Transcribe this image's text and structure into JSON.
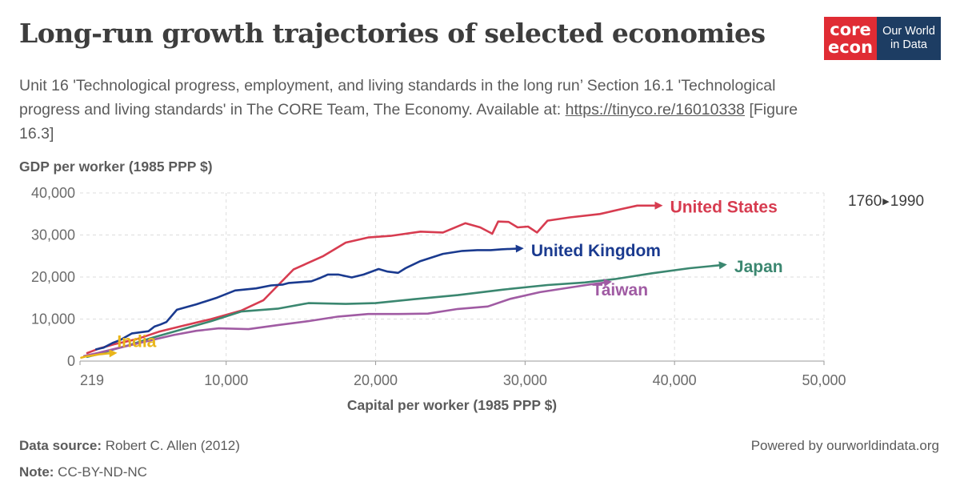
{
  "header": {
    "title": "Long-run growth trajectories of selected economies",
    "subtitle_part1": "Unit 16 'Technological progress, employment, and living standards in the long run’ Section 16.1 'Technological progress and living standards' in The CORE Team, The Economy. Available at: ",
    "subtitle_link": "https://tinyco.re/16010338",
    "subtitle_part2": " [Figure 16.3]"
  },
  "logos": {
    "core_line1": "core",
    "core_line2": "econ",
    "owid_line1": "Our World",
    "owid_line2": "in Data",
    "core_color": "#e02c34",
    "owid_color": "#1d3d63"
  },
  "timeline": {
    "start": "1760",
    "end": "1990"
  },
  "footer": {
    "source_label": "Data source:",
    "source_value": " Robert C. Allen (2012)",
    "note_label": "Note:",
    "note_value": " CC-BY-ND-NC",
    "powered": "Powered by ourworldindata.org"
  },
  "chart_data": {
    "type": "line",
    "xlabel": "Capital per worker (1985 PPP $)",
    "ylabel": "GDP per worker (1985 PPP $)",
    "xlim": [
      219,
      50000
    ],
    "ylim": [
      0,
      40000
    ],
    "x_ticks": [
      219,
      10000,
      20000,
      30000,
      40000,
      50000
    ],
    "x_tick_labels": [
      "219",
      "10,000",
      "20,000",
      "30,000",
      "40,000",
      "50,000"
    ],
    "y_ticks": [
      0,
      10000,
      20000,
      30000,
      40000
    ],
    "y_tick_labels": [
      "0",
      "10,000",
      "20,000",
      "30,000",
      "40,000"
    ],
    "grid": true,
    "series": [
      {
        "name": "United States",
        "color": "#d73c50",
        "points": [
          [
            700,
            1900
          ],
          [
            1500,
            3000
          ],
          [
            2500,
            4000
          ],
          [
            4000,
            5200
          ],
          [
            5500,
            7000
          ],
          [
            7000,
            8300
          ],
          [
            9000,
            10000
          ],
          [
            11000,
            12000
          ],
          [
            12500,
            14500
          ],
          [
            14500,
            21800
          ],
          [
            16500,
            25000
          ],
          [
            18000,
            28200
          ],
          [
            19500,
            29400
          ],
          [
            21000,
            29800
          ],
          [
            23000,
            30800
          ],
          [
            24500,
            30600
          ],
          [
            26000,
            32800
          ],
          [
            27000,
            31800
          ],
          [
            27800,
            30300
          ],
          [
            28200,
            33200
          ],
          [
            28900,
            33100
          ],
          [
            29500,
            31800
          ],
          [
            30200,
            32000
          ],
          [
            30800,
            30600
          ],
          [
            31500,
            33400
          ],
          [
            33000,
            34200
          ],
          [
            35000,
            35000
          ],
          [
            36500,
            36200
          ],
          [
            37500,
            37000
          ],
          [
            39000,
            37000
          ]
        ],
        "label_x": 39700,
        "label_y": 36900
      },
      {
        "name": "United Kingdom",
        "color": "#1a3a8f",
        "points": [
          [
            1300,
            2800
          ],
          [
            1800,
            3200
          ],
          [
            2400,
            4300
          ],
          [
            2900,
            5000
          ],
          [
            3700,
            6600
          ],
          [
            4800,
            7100
          ],
          [
            5200,
            8200
          ],
          [
            5600,
            8700
          ],
          [
            6000,
            9300
          ],
          [
            6700,
            12200
          ],
          [
            8000,
            13500
          ],
          [
            9400,
            15100
          ],
          [
            10600,
            16800
          ],
          [
            12000,
            17300
          ],
          [
            13000,
            18000
          ],
          [
            13800,
            18200
          ],
          [
            14200,
            18600
          ],
          [
            15000,
            18800
          ],
          [
            15700,
            19000
          ],
          [
            16300,
            19800
          ],
          [
            16800,
            20600
          ],
          [
            17500,
            20600
          ],
          [
            18400,
            19900
          ],
          [
            19200,
            20600
          ],
          [
            20200,
            21900
          ],
          [
            20800,
            21300
          ],
          [
            21500,
            21000
          ],
          [
            22000,
            22100
          ],
          [
            23000,
            23800
          ],
          [
            24500,
            25500
          ],
          [
            25800,
            26200
          ],
          [
            26800,
            26400
          ],
          [
            27700,
            26400
          ],
          [
            28400,
            26600
          ],
          [
            29700,
            26800
          ]
        ],
        "label_x": 30400,
        "label_y": 26500
      },
      {
        "name": "Japan",
        "color": "#3b8770",
        "points": [
          [
            700,
            1000
          ],
          [
            1500,
            1700
          ],
          [
            2500,
            2800
          ],
          [
            3500,
            3800
          ],
          [
            5000,
            5500
          ],
          [
            6500,
            7000
          ],
          [
            7500,
            8000
          ],
          [
            9000,
            9500
          ],
          [
            11000,
            11800
          ],
          [
            13500,
            12500
          ],
          [
            15500,
            13800
          ],
          [
            18000,
            13600
          ],
          [
            20000,
            13800
          ],
          [
            22500,
            14700
          ],
          [
            25500,
            15700
          ],
          [
            28500,
            17000
          ],
          [
            31500,
            18100
          ],
          [
            34000,
            18700
          ],
          [
            36000,
            19500
          ],
          [
            38500,
            20900
          ],
          [
            41000,
            22100
          ],
          [
            43300,
            22900
          ]
        ],
        "label_x": 44000,
        "label_y": 22700
      },
      {
        "name": "Taiwan",
        "color": "#a05ba3",
        "points": [
          [
            500,
            1200
          ],
          [
            1500,
            2000
          ],
          [
            3000,
            3300
          ],
          [
            5000,
            5000
          ],
          [
            6500,
            6200
          ],
          [
            8000,
            7200
          ],
          [
            9500,
            7800
          ],
          [
            11500,
            7600
          ],
          [
            13500,
            8600
          ],
          [
            15500,
            9500
          ],
          [
            17500,
            10600
          ],
          [
            19500,
            11200
          ],
          [
            21500,
            11200
          ],
          [
            23500,
            11300
          ],
          [
            25500,
            12400
          ],
          [
            27500,
            13000
          ],
          [
            29000,
            14800
          ],
          [
            31000,
            16400
          ],
          [
            33000,
            17500
          ],
          [
            34500,
            18300
          ],
          [
            35600,
            18800
          ]
        ],
        "label_x": 34500,
        "label_y": 17100
      },
      {
        "name": "India",
        "color": "#e9b51a",
        "points": [
          [
            300,
            800
          ],
          [
            600,
            1100
          ],
          [
            1000,
            1300
          ],
          [
            1500,
            1600
          ],
          [
            2000,
            1800
          ],
          [
            2500,
            1900
          ]
        ],
        "label_x": 2700,
        "label_y": 4900
      }
    ]
  }
}
